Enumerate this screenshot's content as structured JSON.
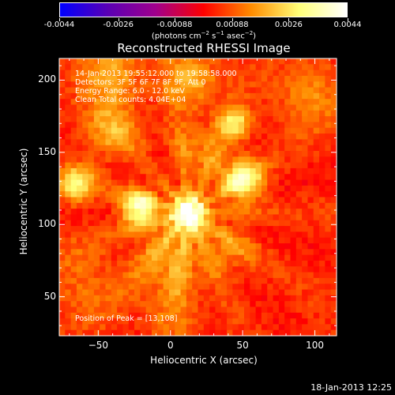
{
  "colorbar": {
    "ticks": [
      "-0.0044",
      "-0.0026",
      "-0.00088",
      "0.00088",
      "0.0026",
      "0.0044"
    ],
    "tick_values": [
      -0.0044,
      -0.0026,
      -0.00088,
      0.00088,
      0.0026,
      0.0044
    ],
    "range": [
      -0.0044,
      0.0044
    ],
    "units": "(photons cm-2 s-1 asec-2)",
    "colors": [
      "#0000ff",
      "#5a00b4",
      "#a0008c",
      "#ff0000",
      "#ff8c00",
      "#ffff78",
      "#ffffff"
    ]
  },
  "title": "Reconstructed RHESSI Image",
  "annotations": {
    "time_range": "14-Jan-2013 19:55:12.000 to 19:58:58.000",
    "detectors": "Detectors: 3F 5F 6F 7F 8F 9F, Att 0",
    "energy": "Energy Range: 6.0 - 12.0 keV",
    "method": "Clean     Total counts: 4.04E+04",
    "peak": "Position of Peak = [13,108]"
  },
  "footer_date": "18-Jan-2013 12:25",
  "chart_data": {
    "type": "heatmap",
    "title": "Reconstructed RHESSI Image",
    "xlabel": "Heliocentric X (arcsec)",
    "ylabel": "Heliocentric Y (arcsec)",
    "xlim": [
      -77,
      115
    ],
    "ylim": [
      23,
      215
    ],
    "xticks": [
      -50,
      0,
      50,
      100
    ],
    "yticks": [
      50,
      100,
      150,
      200
    ],
    "xtick_labels": [
      "−50",
      "0",
      "50",
      "100"
    ],
    "ytick_labels": [
      "50",
      "100",
      "150",
      "200"
    ],
    "peak": [
      13,
      108
    ],
    "pixel_size_arcsec": 4,
    "sources": [
      {
        "x": 13,
        "y": 108,
        "amplitude": 0.0044,
        "sigma": 9
      },
      {
        "x": -22,
        "y": 112,
        "amplitude": 0.0034,
        "sigma": 9
      },
      {
        "x": 50,
        "y": 130,
        "amplitude": 0.0033,
        "sigma": 10
      },
      {
        "x": 45,
        "y": 170,
        "amplitude": 0.0022,
        "sigma": 8
      },
      {
        "x": -65,
        "y": 128,
        "amplitude": 0.0024,
        "sigma": 9
      },
      {
        "x": -40,
        "y": 165,
        "amplitude": 0.0015,
        "sigma": 14
      },
      {
        "x": 0,
        "y": 80,
        "amplitude": 0.0014,
        "sigma": 16
      },
      {
        "x": 40,
        "y": 85,
        "amplitude": 0.0011,
        "sigma": 14
      },
      {
        "x": 15,
        "y": 200,
        "amplitude": 0.0016,
        "sigma": 14
      },
      {
        "x": -40,
        "y": 205,
        "amplitude": 0.0016,
        "sigma": 14
      },
      {
        "x": 95,
        "y": 190,
        "amplitude": 0.0012,
        "sigma": 16
      },
      {
        "x": -60,
        "y": 60,
        "amplitude": 0.0009,
        "sigma": 18
      },
      {
        "x": 0,
        "y": 45,
        "amplitude": 0.0008,
        "sigma": 18
      },
      {
        "x": 20,
        "y": 150,
        "amplitude": 0.0012,
        "sigma": 14
      }
    ],
    "background": 0.0004
  }
}
